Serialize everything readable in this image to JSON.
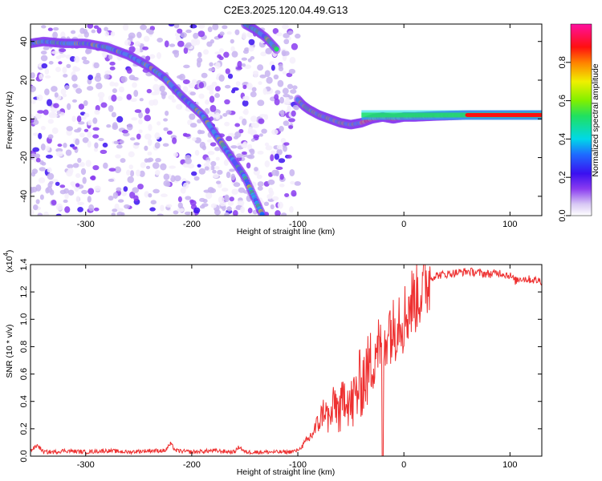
{
  "title": "C2E3.2025.120.04.49.G13",
  "chart_data": [
    {
      "type": "heatmap",
      "xlabel": "Height of straight line (km)",
      "ylabel": "Frequency (Hz)",
      "xlim": [
        -352,
        130
      ],
      "ylim": [
        -50,
        49
      ],
      "xticks": [
        -300,
        -200,
        -100,
        0,
        100
      ],
      "yticks": [
        -40,
        -20,
        0,
        20,
        40
      ],
      "xtick_labels": [
        "-300",
        "-200",
        "-100",
        "0",
        "100"
      ],
      "ytick_labels": [
        "-40",
        "-20",
        "0",
        "20",
        "40"
      ],
      "colorbar": {
        "label": "Normalized spectral amplitude",
        "range": [
          0,
          1
        ],
        "ticks": [
          0.0,
          0.2,
          0.4,
          0.6,
          0.8
        ],
        "tick_labels": [
          "0.0",
          "0.2",
          "0.4",
          "0.6",
          "0.8"
        ],
        "colormap": "rainbow (white-violet-blue-cyan-green-yellow-red-magenta)"
      },
      "features": {
        "noise_region_x": [
          -352,
          -100
        ],
        "tracks": [
          {
            "x": [
              -352,
              -340,
              -320,
              -300,
              -280,
              -260,
              -240,
              -225,
              -210,
              -190,
              -170,
              -150,
              -133
            ],
            "y": [
              39,
              40,
              39,
              39,
              37,
              33,
              27,
              21,
              12,
              2,
              -14,
              -30,
              -50
            ]
          },
          {
            "x": [
              -150,
              -140,
              -130,
              -120
            ],
            "y": [
              49,
              46,
              42,
              36
            ]
          },
          {
            "x": [
              -100,
              -95,
              -90,
              -80,
              -70,
              -60,
              -50,
              -40,
              -30,
              -20,
              -10,
              0,
              10,
              30,
              60,
              100,
              130
            ],
            "y": [
              10,
              7,
              5,
              2,
              0,
              -2,
              -3,
              -2,
              0,
              1,
              0,
              1,
              1,
              1.5,
              2,
              2,
              2
            ]
          }
        ],
        "strong_band_x": [
          -40,
          130
        ]
      }
    },
    {
      "type": "line",
      "xlabel": "Height of straight line (km)",
      "ylabel": "SNR (10 * v/v)",
      "exponent_label": "(x10",
      "exponent_power": "4",
      "exponent_close": ")",
      "xlim": [
        -352,
        130
      ],
      "ylim": [
        0,
        1.4
      ],
      "xticks": [
        -300,
        -200,
        -100,
        0,
        100
      ],
      "yticks": [
        0.0,
        0.2,
        0.4,
        0.6,
        0.8,
        1.0,
        1.2,
        1.4
      ],
      "xtick_labels": [
        "-300",
        "-200",
        "-100",
        "0",
        "100"
      ],
      "ytick_labels": [
        "0.0",
        "0.2",
        "0.4",
        "0.6",
        "0.8",
        "1.0",
        "1.2",
        "1.4"
      ],
      "series": [
        {
          "color": "#ee3030",
          "x": [
            -352,
            -345,
            -340,
            -330,
            -320,
            -300,
            -280,
            -260,
            -240,
            -225,
            -220,
            -215,
            -200,
            -180,
            -160,
            -155,
            -150,
            -130,
            -110,
            -100,
            -95,
            -90,
            -85,
            -80,
            -75,
            -70,
            -65,
            -60,
            -55,
            -50,
            -45,
            -40,
            -35,
            -30,
            -25,
            -20,
            -15,
            -10,
            -5,
            0,
            5,
            10,
            15,
            20,
            25,
            30,
            40,
            50,
            60,
            70,
            80,
            90,
            100,
            105,
            110,
            120,
            130
          ],
          "y": [
            0.04,
            0.08,
            0.03,
            0.03,
            0.04,
            0.03,
            0.04,
            0.03,
            0.04,
            0.04,
            0.09,
            0.04,
            0.03,
            0.04,
            0.03,
            0.07,
            0.03,
            0.03,
            0.03,
            0.04,
            0.08,
            0.12,
            0.18,
            0.25,
            0.35,
            0.25,
            0.4,
            0.3,
            0.5,
            0.35,
            0.45,
            0.55,
            0.6,
            0.7,
            0.85,
            0.65,
            1.0,
            0.9,
            1.05,
            1.0,
            1.1,
            1.15,
            1.2,
            1.25,
            1.3,
            1.32,
            1.33,
            1.34,
            1.35,
            1.34,
            1.33,
            1.34,
            1.32,
            1.28,
            1.3,
            1.29,
            1.28
          ]
        }
      ],
      "dropout_x": -20
    }
  ]
}
